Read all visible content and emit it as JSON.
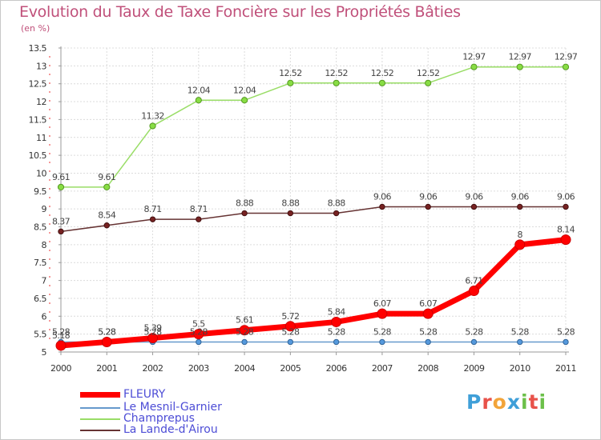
{
  "header": {
    "title": "Evolution du Taux de Taxe Foncière sur les Propriétés Bâties",
    "unit": "(en %)"
  },
  "logo": {
    "text": "Proxiti",
    "colors": [
      "#3f9fd8",
      "#e8524a",
      "#f2a43a",
      "#3f9fd8",
      "#6cc04a",
      "#e8524a",
      "#6cc04a"
    ]
  },
  "chart_data": {
    "type": "line",
    "title": "Evolution du Taux de Taxe Foncière sur les Propriétés Bâties",
    "ylabel": "(en %)",
    "xlabel": "",
    "x": [
      "2000",
      "2001",
      "2002",
      "2003",
      "2004",
      "2005",
      "2006",
      "2007",
      "2008",
      "2009",
      "2010",
      "2011"
    ],
    "ylim": [
      5,
      13.5
    ],
    "yticks": [
      "5",
      "5.5",
      "6",
      "6.5",
      "7",
      "7.5",
      "8",
      "8.5",
      "9",
      "9.5",
      "10",
      "10.5",
      "11",
      "11.5",
      "12",
      "12.5",
      "13",
      "13.5"
    ],
    "grid": true,
    "legend_position": "bottom-left",
    "series": [
      {
        "name": "FLEURY",
        "color": "#ff0000",
        "values": [
          5.18,
          5.28,
          5.39,
          5.5,
          5.61,
          5.72,
          5.84,
          6.07,
          6.07,
          6.71,
          8,
          8.14
        ],
        "labels": [
          "5.18",
          "5.28",
          "5.39",
          "5.5",
          "5.61",
          "5.72",
          "5.84",
          "6.07",
          "6.07",
          "6.71",
          "8",
          "8.14"
        ]
      },
      {
        "name": "Le Mesnil-Garnier",
        "color": "#6699cc",
        "values": [
          5.28,
          5.28,
          5.28,
          5.28,
          5.28,
          5.28,
          5.28,
          5.28,
          5.28,
          5.28,
          5.28,
          5.28
        ],
        "labels": [
          "5.28",
          "5.28",
          "5.28",
          "5.28",
          "5.28",
          "5.28",
          "5.28",
          "5.28",
          "5.28",
          "5.28",
          "5.28",
          "5.28"
        ]
      },
      {
        "name": "Champrepus",
        "color": "#99dd66",
        "values": [
          9.61,
          9.61,
          11.32,
          12.04,
          12.04,
          12.52,
          12.52,
          12.52,
          12.52,
          12.97,
          12.97,
          12.97
        ],
        "labels": [
          "9.61",
          "9.61",
          "11.32",
          "12.04",
          "12.04",
          "12.52",
          "12.52",
          "12.52",
          "12.52",
          "12.97",
          "12.97",
          "12.97"
        ]
      },
      {
        "name": "La Lande-d'Airou",
        "color": "#663333",
        "values": [
          8.37,
          8.54,
          8.71,
          8.71,
          8.88,
          8.88,
          8.88,
          9.06,
          9.06,
          9.06,
          9.06,
          9.06
        ],
        "labels": [
          "8.37",
          "8.54",
          "8.71",
          "8.71",
          "8.88",
          "8.88",
          "8.88",
          "9.06",
          "9.06",
          "9.06",
          "9.06",
          "9.06"
        ]
      }
    ]
  }
}
